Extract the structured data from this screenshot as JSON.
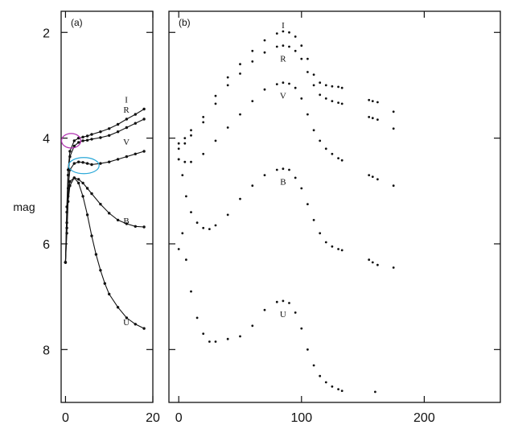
{
  "chart_data": [
    {
      "type": "line",
      "panel_label": "(a)",
      "ylabel": "mag",
      "y_inverted": true,
      "xlim": [
        -1,
        20
      ],
      "ylim": [
        1.6,
        9.0
      ],
      "x_ticks": [
        0,
        20
      ],
      "y_ticks": [
        2,
        4,
        6,
        8
      ],
      "grid": false,
      "series": [
        {
          "name": "I",
          "x": [
            0,
            0.3,
            0.6,
            1,
            2,
            3,
            4,
            5,
            6,
            8,
            10,
            12,
            14,
            16,
            18
          ],
          "values": [
            6.35,
            5.3,
            4.6,
            4.25,
            4.05,
            4.0,
            3.98,
            3.96,
            3.93,
            3.88,
            3.82,
            3.74,
            3.64,
            3.55,
            3.45
          ]
        },
        {
          "name": "R",
          "x": [
            0,
            0.3,
            0.6,
            1,
            2,
            3,
            4,
            5,
            6,
            8,
            10,
            12,
            14,
            16,
            18
          ],
          "values": [
            6.35,
            5.4,
            4.7,
            4.35,
            4.15,
            4.08,
            4.05,
            4.04,
            4.02,
            3.99,
            3.95,
            3.88,
            3.8,
            3.72,
            3.64
          ]
        },
        {
          "name": "V",
          "x": [
            0,
            0.3,
            0.6,
            1,
            2,
            3,
            4,
            5,
            6,
            8,
            10,
            12,
            14,
            16,
            18
          ],
          "values": [
            6.35,
            5.6,
            4.95,
            4.6,
            4.48,
            4.45,
            4.46,
            4.48,
            4.5,
            4.48,
            4.45,
            4.4,
            4.35,
            4.3,
            4.25
          ]
        },
        {
          "name": "B",
          "x": [
            0,
            0.3,
            0.6,
            1,
            2,
            3,
            4,
            5,
            6,
            8,
            10,
            12,
            14,
            16,
            18
          ],
          "values": [
            6.35,
            5.7,
            5.1,
            4.82,
            4.75,
            4.78,
            4.85,
            4.95,
            5.05,
            5.25,
            5.42,
            5.55,
            5.62,
            5.67,
            5.68
          ]
        },
        {
          "name": "U",
          "x": [
            0,
            0.3,
            0.6,
            1,
            2,
            3,
            4,
            5,
            6,
            7,
            8,
            9,
            10,
            12,
            14,
            16,
            18
          ],
          "values": [
            6.35,
            5.8,
            5.2,
            4.9,
            4.75,
            4.85,
            5.1,
            5.45,
            5.85,
            6.2,
            6.5,
            6.75,
            6.95,
            7.2,
            7.4,
            7.52,
            7.6
          ]
        }
      ]
    },
    {
      "type": "scatter",
      "panel_label": "(b)",
      "ylabel": "",
      "y_inverted": true,
      "xlim": [
        -8,
        262
      ],
      "ylim": [
        1.6,
        9.0
      ],
      "x_ticks": [
        0,
        100,
        200
      ],
      "y_ticks": [
        2,
        4,
        6,
        8
      ],
      "grid": false,
      "series": [
        {
          "name": "I",
          "x": [
            0,
            5,
            10,
            20,
            30,
            40,
            50,
            60,
            70,
            80,
            85,
            90,
            95,
            100,
            105,
            110,
            115,
            120,
            125,
            130,
            133,
            155,
            158,
            162,
            175
          ],
          "values": [
            4.1,
            4.0,
            3.85,
            3.6,
            3.2,
            2.85,
            2.6,
            2.35,
            2.15,
            2.02,
            1.98,
            2.0,
            2.08,
            2.25,
            2.5,
            2.8,
            2.95,
            3.0,
            3.02,
            3.03,
            3.05,
            3.28,
            3.3,
            3.32,
            3.5
          ]
        },
        {
          "name": "R",
          "x": [
            0,
            5,
            10,
            20,
            30,
            40,
            50,
            60,
            70,
            80,
            85,
            90,
            95,
            100,
            105,
            110,
            115,
            120,
            125,
            130,
            133,
            155,
            158,
            162,
            175
          ],
          "values": [
            4.2,
            4.1,
            3.95,
            3.7,
            3.35,
            3.0,
            2.78,
            2.55,
            2.38,
            2.27,
            2.25,
            2.27,
            2.35,
            2.5,
            2.75,
            3.0,
            3.18,
            3.25,
            3.3,
            3.33,
            3.35,
            3.6,
            3.62,
            3.65,
            3.82
          ]
        },
        {
          "name": "V",
          "x": [
            0,
            5,
            10,
            20,
            30,
            40,
            50,
            60,
            70,
            80,
            85,
            90,
            95,
            100,
            105,
            110,
            115,
            120,
            125,
            130,
            133,
            155,
            158,
            162,
            175
          ],
          "values": [
            4.4,
            4.45,
            4.45,
            4.3,
            4.05,
            3.8,
            3.55,
            3.3,
            3.08,
            2.98,
            2.95,
            2.97,
            3.05,
            3.25,
            3.55,
            3.85,
            4.05,
            4.2,
            4.3,
            4.38,
            4.42,
            4.7,
            4.73,
            4.78,
            4.9
          ]
        },
        {
          "name": "B",
          "x": [
            0,
            3,
            6,
            10,
            15,
            20,
            25,
            30,
            40,
            50,
            60,
            70,
            80,
            85,
            90,
            95,
            100,
            105,
            110,
            115,
            120,
            125,
            130,
            133,
            155,
            158,
            162,
            175
          ],
          "values": [
            4.4,
            4.7,
            5.1,
            5.4,
            5.6,
            5.7,
            5.72,
            5.65,
            5.45,
            5.15,
            4.9,
            4.7,
            4.6,
            4.58,
            4.6,
            4.75,
            4.95,
            5.25,
            5.55,
            5.8,
            5.97,
            6.05,
            6.1,
            6.12,
            6.3,
            6.35,
            6.4,
            6.45
          ]
        },
        {
          "name": "U",
          "x": [
            0,
            3,
            6,
            10,
            15,
            20,
            25,
            30,
            40,
            50,
            60,
            70,
            80,
            85,
            90,
            95,
            100,
            105,
            110,
            115,
            120,
            125,
            130,
            133,
            160
          ],
          "values": [
            6.1,
            5.8,
            6.3,
            6.9,
            7.4,
            7.7,
            7.85,
            7.85,
            7.8,
            7.75,
            7.55,
            7.25,
            7.1,
            7.08,
            7.12,
            7.3,
            7.6,
            8.0,
            8.3,
            8.5,
            8.62,
            8.7,
            8.75,
            8.78,
            8.8
          ]
        }
      ]
    }
  ]
}
